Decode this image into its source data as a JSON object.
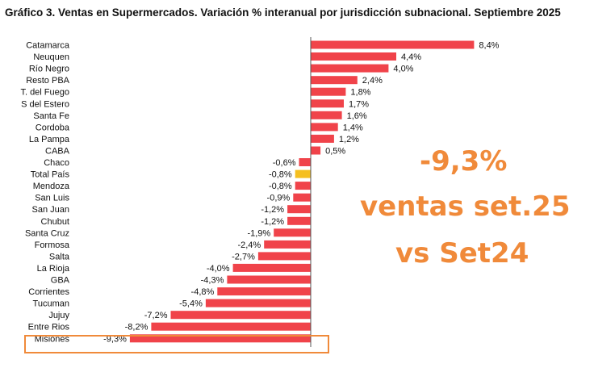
{
  "title": "Gráfico 3. Ventas en Supermercados. Variación % interanual por jurisdicción subnacional. Septiembre 2025",
  "colors": {
    "bar": "#f0434a",
    "highlight_bar": "#f5bf1f",
    "annotation": "#f08a3a"
  },
  "annotation": {
    "line1": "-9,3%",
    "line2": "ventas set.25",
    "line3": "vs Set24"
  },
  "chart_data": {
    "type": "bar",
    "orientation": "horizontal",
    "xlim": [
      -10,
      10
    ],
    "categories": [
      "Catamarca",
      "Neuquen",
      "Río Negro",
      "Resto PBA",
      "T. del Fuego",
      "S del Estero",
      "Santa Fe",
      "Cordoba",
      "La Pampa",
      "CABA",
      "Chaco",
      "Total País",
      "Mendoza",
      "San Luis",
      "San Juan",
      "Chubut",
      "Santa Cruz",
      "Formosa",
      "Salta",
      "La Rioja",
      "GBA",
      "Corrientes",
      "Tucuman",
      "Jujuy",
      "Entre Rios",
      "Misiones"
    ],
    "values": [
      8.4,
      4.4,
      4.0,
      2.4,
      1.8,
      1.7,
      1.6,
      1.4,
      1.2,
      0.5,
      -0.6,
      -0.8,
      -0.8,
      -0.9,
      -1.2,
      -1.2,
      -1.9,
      -2.4,
      -2.7,
      -4.0,
      -4.3,
      -4.8,
      -5.4,
      -7.2,
      -8.2,
      -9.3
    ],
    "value_labels": [
      "8,4%",
      "4,4%",
      "4,0%",
      "2,4%",
      "1,8%",
      "1,7%",
      "1,6%",
      "1,4%",
      "1,2%",
      "0,5%",
      "-0,6%",
      "-0,8%",
      "-0,8%",
      "-0,9%",
      "-1,2%",
      "-1,2%",
      "-1,9%",
      "-2,4%",
      "-2,7%",
      "-4,0%",
      "-4,3%",
      "-4,8%",
      "-5,4%",
      "-7,2%",
      "-8,2%",
      "-9,3%"
    ],
    "highlighted_category": "Total País",
    "boxed_category": "Misiones"
  }
}
